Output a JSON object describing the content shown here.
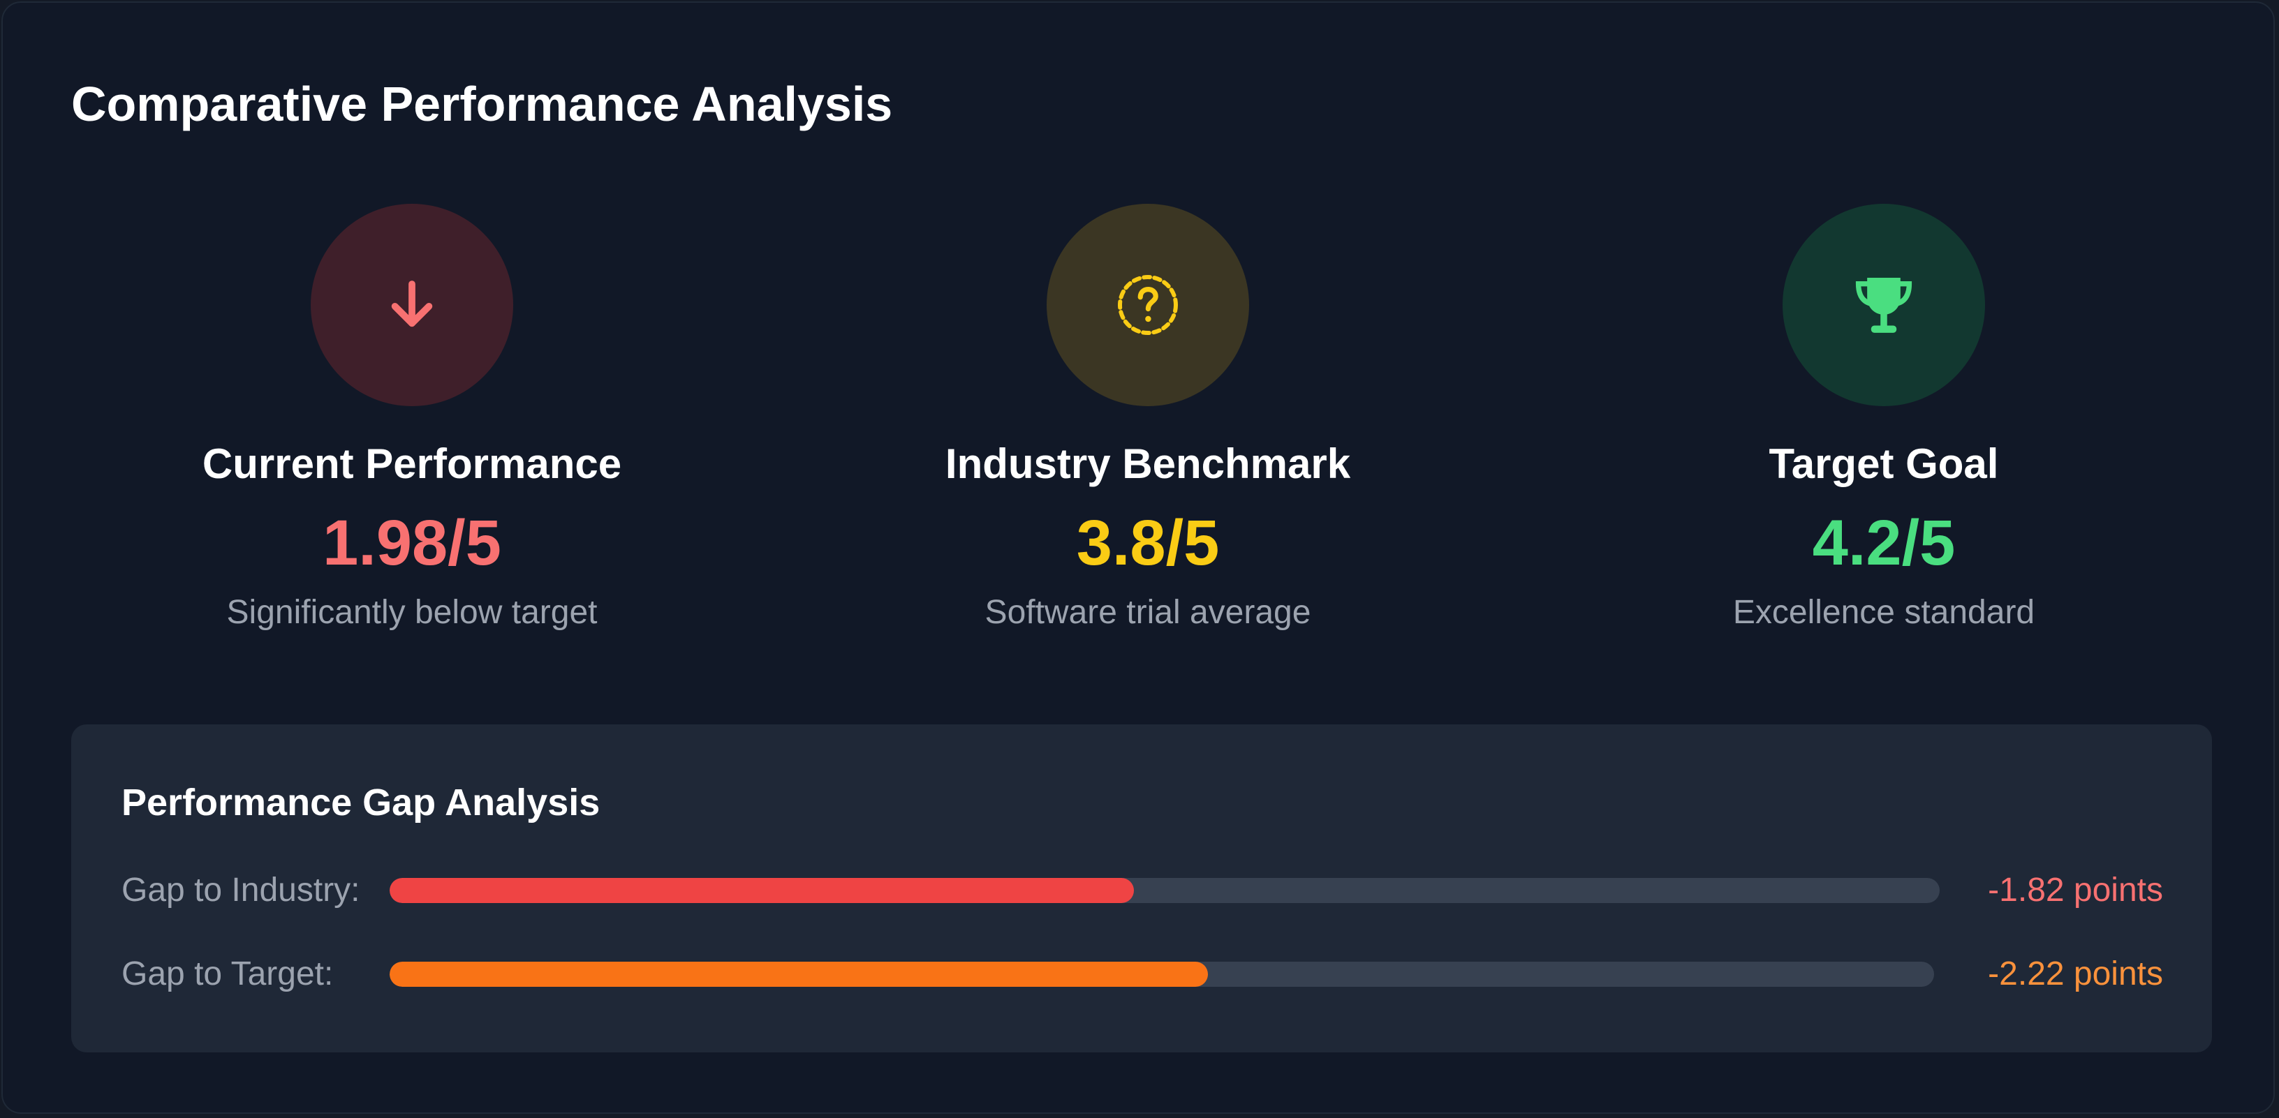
{
  "title": "Comparative Performance Analysis",
  "metrics": [
    {
      "icon": "arrow-down-icon",
      "label": "Current Performance",
      "value": "1.98/5",
      "note": "Significantly below target",
      "color": "#f87171",
      "icon_bg": "#3f1f2a"
    },
    {
      "icon": "question-circle-icon",
      "label": "Industry Benchmark",
      "value": "3.8/5",
      "note": "Software trial average",
      "color": "#facc15",
      "icon_bg": "#3b3623"
    },
    {
      "icon": "trophy-icon",
      "label": "Target Goal",
      "value": "4.2/5",
      "note": "Excellence standard",
      "color": "#4ade80",
      "icon_bg": "#123830"
    }
  ],
  "gap_analysis": {
    "title": "Performance Gap Analysis",
    "rows": [
      {
        "label": "Gap to Industry:",
        "value": "-1.82 points",
        "fill_fraction": 0.48,
        "bar_color": "#ef4444",
        "text_color": "#f87171"
      },
      {
        "label": "Gap to Target:",
        "value": "-2.22 points",
        "fill_fraction": 0.53,
        "bar_color": "#f97316",
        "text_color": "#fb923c"
      }
    ]
  }
}
